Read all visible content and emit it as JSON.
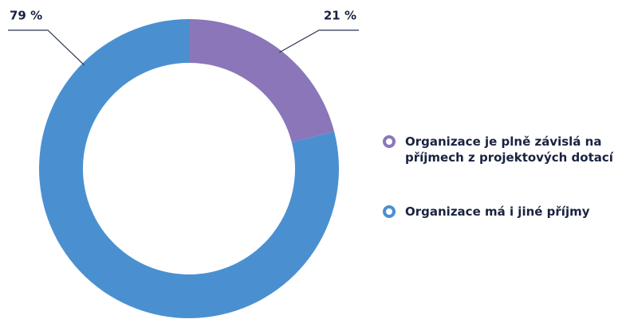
{
  "chart_data": {
    "type": "donut",
    "categories": [
      "Organizace je plně závislá na příjmech z projektových dotací",
      "Organizace má i jiné příjmy"
    ],
    "values": [
      21,
      79
    ],
    "value_labels": [
      "21 %",
      "79 %"
    ],
    "colors": [
      "#8a76b8",
      "#4a90d0"
    ]
  }
}
